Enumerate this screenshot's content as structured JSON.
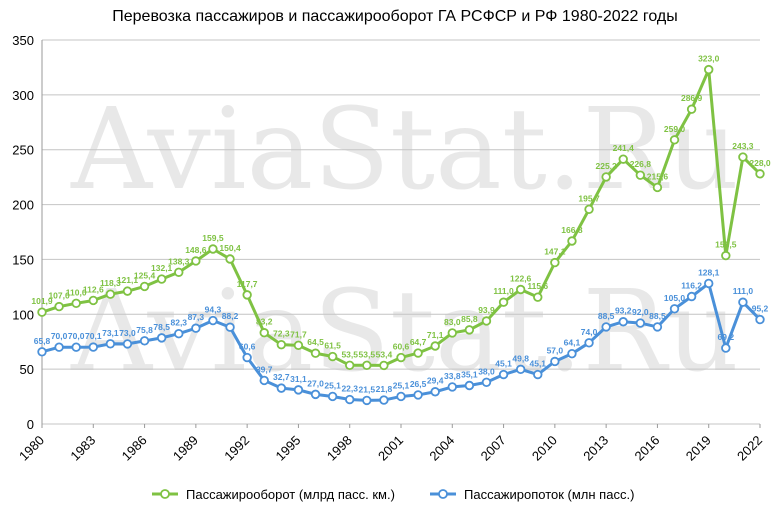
{
  "chart_data": {
    "type": "line",
    "title": "Перевозка пассажиров и пассажирооборот ГА РСФСР и РФ 1980-2022 годы",
    "watermark": "AviaStat.Ru",
    "xlabel": "",
    "ylabel": "",
    "ylim": [
      0,
      350
    ],
    "yticks": [
      "0",
      "50",
      "100",
      "150",
      "200",
      "250",
      "300",
      "350"
    ],
    "xtick_labels": [
      "1980",
      "1983",
      "1986",
      "1989",
      "1992",
      "1995",
      "1998",
      "2001",
      "2004",
      "2007",
      "2010",
      "2013",
      "2016",
      "2019",
      "2022"
    ],
    "x": [
      1980,
      1981,
      1982,
      1983,
      1984,
      1985,
      1986,
      1987,
      1988,
      1989,
      1990,
      1991,
      1992,
      1993,
      1994,
      1995,
      1996,
      1997,
      1998,
      1999,
      2000,
      2001,
      2002,
      2003,
      2004,
      2005,
      2006,
      2007,
      2008,
      2009,
      2010,
      2011,
      2012,
      2013,
      2014,
      2015,
      2016,
      2017,
      2018,
      2019,
      2020,
      2021,
      2022
    ],
    "grid": true,
    "legend_position": "bottom",
    "series": [
      {
        "name": "Пассажирооборот (млрд пасс. км.)",
        "color": "#7fc243",
        "values": [
          101.9,
          107.0,
          110.0,
          112.6,
          118.3,
          121.1,
          125.4,
          132.1,
          138.3,
          148.6,
          159.5,
          150.4,
          117.7,
          83.2,
          72.3,
          71.7,
          64.5,
          61.5,
          53.5,
          53.5,
          53.4,
          60.6,
          64.7,
          71.1,
          83.0,
          85.8,
          93.9,
          111.0,
          122.6,
          115.6,
          147.1,
          166.8,
          195.7,
          225.2,
          241.4,
          226.8,
          215.6,
          259.0,
          286.9,
          323.0,
          153.5,
          243.3,
          228.0
        ],
        "labels": [
          "101,9",
          "107,0",
          "110,0",
          "112,6",
          "118,3",
          "121,1",
          "125,4",
          "132,1",
          "138,3",
          "148,6",
          "159,5",
          "150,4",
          "117,7",
          "83,2",
          "72,3",
          "71,7",
          "64,5",
          "61,5",
          "53,5",
          "53,5",
          "53,4",
          "60,6",
          "64,7",
          "71,1",
          "83,0",
          "85,8",
          "93,9",
          "111,0",
          "122,6",
          "115,6",
          "147,1",
          "166,8",
          "195,7",
          "225,2",
          "241,4",
          "226,8",
          "215,6",
          "259,0",
          "286,9",
          "323,0",
          "153,5",
          "243,3",
          "228,0"
        ]
      },
      {
        "name": "Пассажиропоток (млн пасс.)",
        "color": "#4a90d9",
        "values": [
          65.8,
          70.0,
          70.0,
          70.1,
          73.1,
          73.0,
          75.8,
          78.5,
          82.3,
          87.3,
          94.3,
          88.2,
          60.6,
          39.7,
          32.7,
          31.1,
          27.0,
          25.1,
          22.3,
          21.5,
          21.8,
          25.1,
          26.5,
          29.4,
          33.8,
          35.1,
          38.0,
          45.1,
          49.8,
          45.1,
          57.0,
          64.1,
          74.0,
          88.5,
          93.2,
          92.0,
          88.5,
          105.0,
          116.2,
          128.1,
          69.2,
          111.0,
          95.2
        ],
        "labels": [
          "65,8",
          "70,0",
          "70,0",
          "70,1",
          "73,1",
          "73,0",
          "75,8",
          "78,5",
          "82,3",
          "87,3",
          "94,3",
          "88,2",
          "60,6",
          "39,7",
          "32,7",
          "31,1",
          "27,0",
          "25,1",
          "22,3",
          "21,5",
          "21,8",
          "25,1",
          "26,5",
          "29,4",
          "33,8",
          "35,1",
          "38,0",
          "45,1",
          "49,8",
          "45,1",
          "57,0",
          "64,1",
          "74,0",
          "88,5",
          "93,2",
          "92,0",
          "88,5",
          "105,0",
          "116,2",
          "128,1",
          "69,2",
          "111,0",
          "95,2"
        ]
      }
    ]
  }
}
